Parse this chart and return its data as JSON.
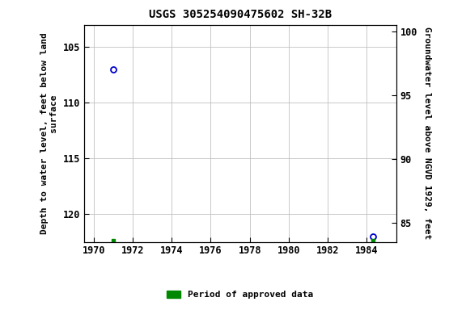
{
  "title": "USGS 305254090475602 SH-32B",
  "left_ylabel": "Depth to water level, feet below land\n       surface",
  "right_ylabel": "Groundwater level above NGVD 1929, feet",
  "xlim": [
    1969.5,
    1985.5
  ],
  "ylim_left_top": 103,
  "ylim_left_bottom": 122.5,
  "ylim_right_top": 100.5,
  "ylim_right_bottom": 83.5,
  "xticks": [
    1970,
    1972,
    1974,
    1976,
    1978,
    1980,
    1982,
    1984
  ],
  "yticks_left": [
    105,
    110,
    115,
    120
  ],
  "yticks_right": [
    100,
    95,
    90,
    85
  ],
  "blue_points_x": [
    1971.0,
    1984.3
  ],
  "blue_points_y": [
    107.0,
    122.0
  ],
  "green_points_x": [
    1971.0,
    1984.3
  ],
  "green_points_y": [
    122.4,
    122.4
  ],
  "point_color": "#0000cc",
  "green_color": "#008800",
  "bg_color": "#ffffff",
  "grid_color": "#c0c0c0",
  "legend_label": "Period of approved data",
  "title_fontsize": 10,
  "label_fontsize": 8,
  "tick_fontsize": 8.5
}
